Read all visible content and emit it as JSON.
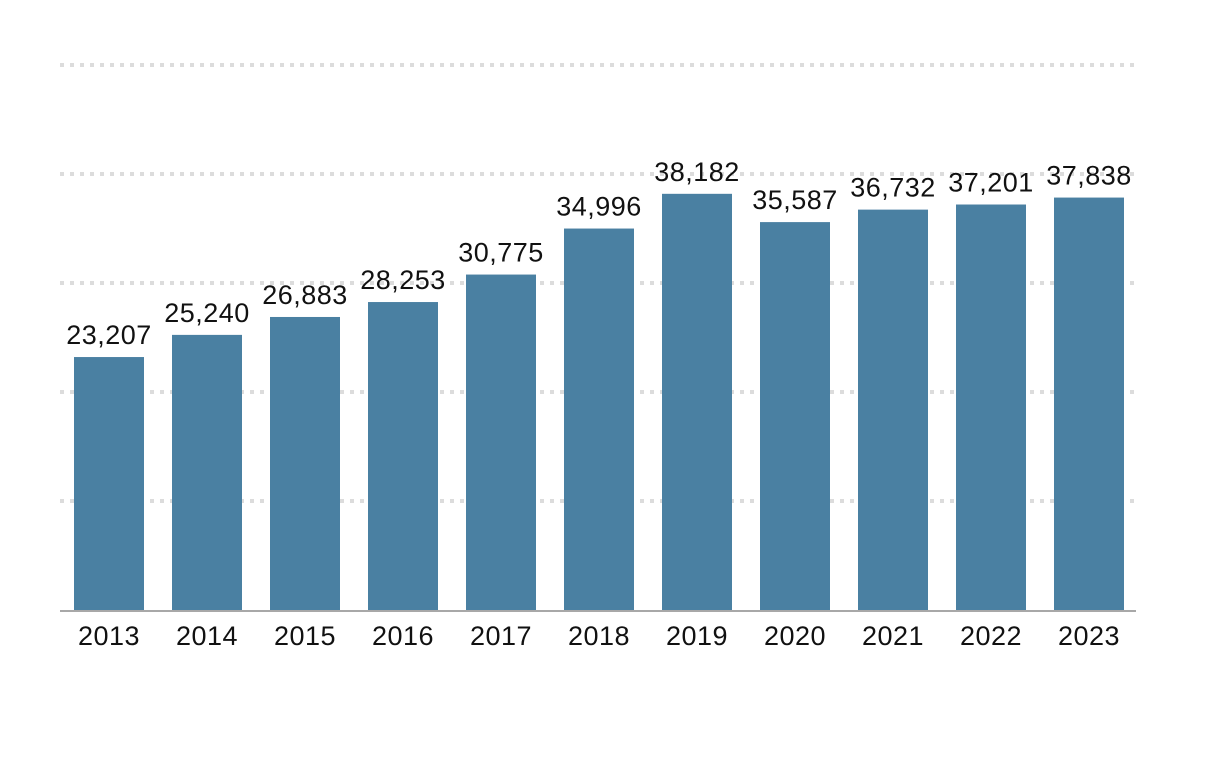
{
  "chart_data": {
    "type": "bar",
    "title": "",
    "xlabel": "",
    "ylabel": "",
    "categories": [
      "2013",
      "2014",
      "2015",
      "2016",
      "2017",
      "2018",
      "2019",
      "2020",
      "2021",
      "2022",
      "2023"
    ],
    "values": [
      23207,
      25240,
      26883,
      28253,
      30775,
      34996,
      38182,
      35587,
      36732,
      37201,
      37838
    ],
    "data_labels": [
      "23,207",
      "25,240",
      "26,883",
      "28,253",
      "30,775",
      "34,996",
      "38,182",
      "35,587",
      "36,732",
      "37,201",
      "37,838"
    ],
    "ylim": [
      0,
      50000
    ],
    "gridlines": [
      10000,
      20000,
      30000,
      40000,
      50000
    ],
    "grid": true,
    "legend": "none",
    "colors": {
      "bar": "#4a80a2",
      "grid": "#dcdcdc",
      "axis": "#a8a8a8",
      "text": "#111111"
    }
  }
}
